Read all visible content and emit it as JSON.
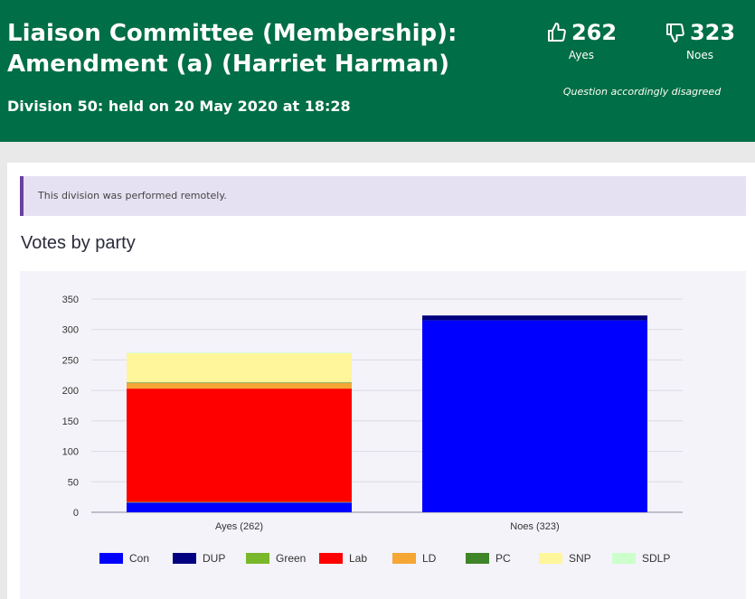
{
  "header": {
    "title_line1": "Liaison Committee (Membership):",
    "title_line2": "Amendment (a) (Harriet Harman)",
    "subtitle": "Division 50: held on 20 May 2020 at 18:28",
    "ayes_count": "262",
    "ayes_label": "Ayes",
    "noes_count": "323",
    "noes_label": "Noes",
    "result": "Question accordingly disagreed",
    "thumbs_up_icon": "thumbs-up-icon",
    "thumbs_down_icon": "thumbs-down-icon",
    "bg_color": "#006e46"
  },
  "notice": {
    "text": "This division was performed remotely.",
    "accent": "#6b3fa0"
  },
  "section": {
    "title": "Votes by party"
  },
  "chart_data": {
    "type": "bar",
    "stacked": true,
    "categories": [
      "Ayes (262)",
      "Noes (323)"
    ],
    "ylim": [
      0,
      350
    ],
    "yticks": [
      0,
      50,
      100,
      150,
      200,
      250,
      300,
      350
    ],
    "grid": true,
    "legend_position": "bottom",
    "series": [
      {
        "name": "Con",
        "color": "#0000ff",
        "values": [
          16,
          315
        ]
      },
      {
        "name": "DUP",
        "color": "#000080",
        "values": [
          0,
          8
        ]
      },
      {
        "name": "Green",
        "color": "#78b82a",
        "values": [
          1,
          0
        ]
      },
      {
        "name": "Lab",
        "color": "#ff0000",
        "values": [
          186,
          0
        ]
      },
      {
        "name": "LD",
        "color": "#f5a634",
        "values": [
          9,
          0
        ]
      },
      {
        "name": "PC",
        "color": "#3f8428",
        "values": [
          1,
          0
        ]
      },
      {
        "name": "SNP",
        "color": "#fff59b",
        "values": [
          48,
          0
        ]
      },
      {
        "name": "SDLP",
        "color": "#ccffcc",
        "values": [
          1,
          0
        ]
      }
    ]
  }
}
